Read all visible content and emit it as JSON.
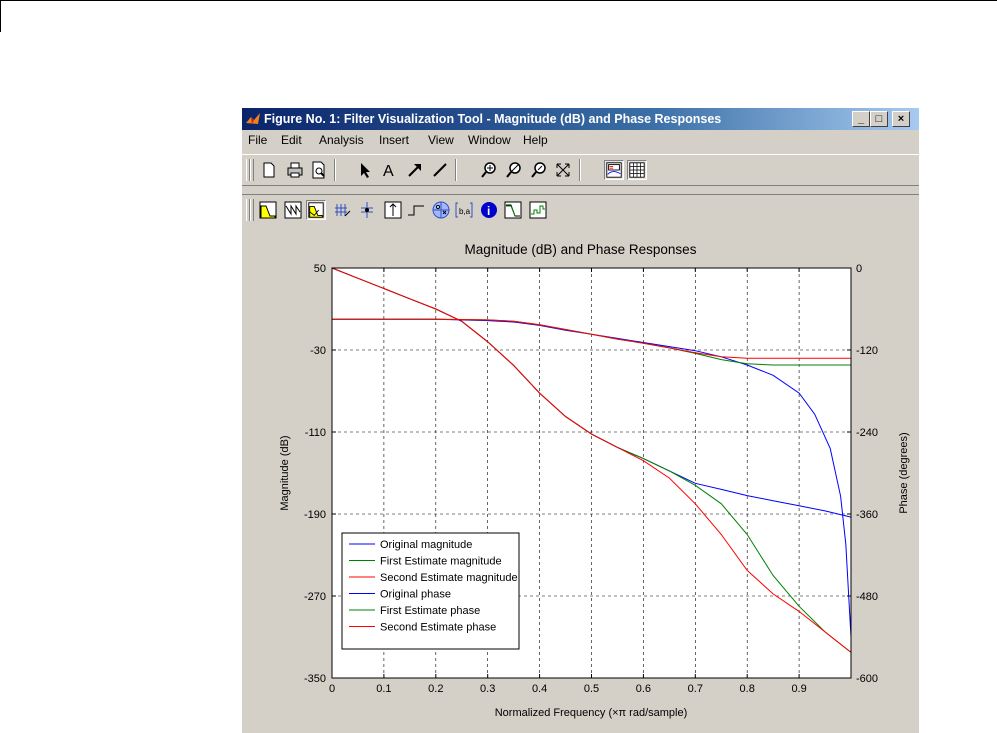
{
  "window": {
    "title": "Figure No. 1: Filter Visualization Tool - Magnitude (dB) and Phase Responses",
    "minimize": "_",
    "maximize": "□",
    "close": "×"
  },
  "menu": [
    "File",
    "Edit",
    "Analysis",
    "Insert",
    "View",
    "Window",
    "Help"
  ],
  "toolbar1": [
    "new-icon",
    "print-icon",
    "print-preview-icon",
    "select-arrow-icon",
    "text-icon",
    "arrow-icon",
    "line-icon",
    "zoom-in-icon",
    "zoom-out-icon",
    "zoom-icon",
    "zoom-reset-icon",
    "legend-icon",
    "grid-icon"
  ],
  "toolbar2": [
    "magnitude-response-icon",
    "phase-response-icon",
    "magnitude-phase-icon",
    "group-delay-icon",
    "phase-delay-icon",
    "impulse-response-icon",
    "step-response-icon",
    "pole-zero-icon",
    "coefficients-icon",
    "info-icon",
    "magnitude-estimate-icon",
    "noise-power-icon"
  ],
  "chart_data": {
    "type": "line",
    "title": "Magnitude (dB) and Phase Responses",
    "xlabel": "Normalized Frequency (×π rad/sample)",
    "ylabel": "Magnitude (dB)",
    "y2label": "Phase (degrees)",
    "xlim": [
      0,
      1
    ],
    "ylim": [
      -350,
      50
    ],
    "y2lim": [
      -600,
      0
    ],
    "xticks": [
      "0",
      "0.1",
      "0.2",
      "0.3",
      "0.4",
      "0.5",
      "0.6",
      "0.7",
      "0.8",
      "0.9"
    ],
    "yticks": [
      "50",
      "-30",
      "-110",
      "-190",
      "-270",
      "-350"
    ],
    "y2ticks": [
      "0",
      "-120",
      "-240",
      "-360",
      "-480",
      "-600"
    ],
    "grid": true,
    "legend_position": "bottom-left",
    "colors": {
      "original": "#0000ff",
      "first": "#008000",
      "second": "#ff0000"
    },
    "series": [
      {
        "name": "Original magnitude",
        "axis": "left",
        "color": "#0000ff",
        "x": [
          0,
          0.05,
          0.1,
          0.15,
          0.2,
          0.25,
          0.3,
          0.35,
          0.4,
          0.45,
          0.5,
          0.55,
          0.6,
          0.65,
          0.7,
          0.75,
          0.8,
          0.85,
          0.9,
          0.95,
          1.0
        ],
        "y": [
          50,
          40,
          30,
          20,
          10,
          -2,
          -22,
          -45,
          -72,
          -95,
          -112,
          -125,
          -136,
          -148,
          -160,
          -166,
          -172,
          -177,
          -182,
          -187,
          -193
        ]
      },
      {
        "name": "First  Estimate magnitude",
        "axis": "left",
        "color": "#008000",
        "x": [
          0,
          0.05,
          0.1,
          0.15,
          0.2,
          0.25,
          0.3,
          0.35,
          0.4,
          0.45,
          0.5,
          0.55,
          0.6,
          0.65,
          0.7,
          0.75,
          0.8,
          0.85,
          0.9,
          0.95,
          1.0
        ],
        "y": [
          50,
          40,
          30,
          20,
          10,
          -2,
          -22,
          -45,
          -72,
          -95,
          -112,
          -125,
          -136,
          -148,
          -162,
          -180,
          -210,
          -250,
          -280,
          -305,
          -325
        ]
      },
      {
        "name": "Second Estimate magnitude",
        "axis": "left",
        "color": "#ff0000",
        "x": [
          0,
          0.05,
          0.1,
          0.15,
          0.2,
          0.25,
          0.3,
          0.35,
          0.4,
          0.45,
          0.5,
          0.55,
          0.6,
          0.65,
          0.7,
          0.75,
          0.8,
          0.85,
          0.9,
          0.95,
          1.0
        ],
        "y": [
          50,
          40,
          30,
          20,
          10,
          -2,
          -22,
          -45,
          -72,
          -95,
          -112,
          -125,
          -138,
          -155,
          -180,
          -210,
          -245,
          -268,
          -285,
          -305,
          -325
        ]
      },
      {
        "name": "Original phase",
        "axis": "right",
        "color": "#0000ff",
        "x": [
          0,
          0.1,
          0.2,
          0.3,
          0.35,
          0.4,
          0.45,
          0.5,
          0.55,
          0.6,
          0.65,
          0.7,
          0.75,
          0.8,
          0.85,
          0.9,
          0.93,
          0.96,
          0.98,
          0.99,
          1.0,
          1.0
        ],
        "y": [
          -75,
          -75,
          -75,
          -77,
          -79,
          -84,
          -91,
          -97,
          -103,
          -109,
          -115,
          -121,
          -130,
          -142,
          -157,
          -183,
          -214,
          -264,
          -334,
          -404,
          -540,
          -360
        ]
      },
      {
        "name": "First Estimate phase",
        "axis": "right",
        "color": "#008000",
        "x": [
          0,
          0.1,
          0.2,
          0.3,
          0.35,
          0.4,
          0.45,
          0.5,
          0.55,
          0.6,
          0.65,
          0.7,
          0.75,
          0.8,
          0.85,
          0.9,
          1.0
        ],
        "y": [
          -75,
          -75,
          -75,
          -76,
          -78,
          -83,
          -90,
          -97,
          -104,
          -110,
          -117,
          -125,
          -134,
          -140,
          -142,
          -142,
          -142
        ]
      },
      {
        "name": "Second Estimate phase",
        "axis": "right",
        "color": "#ff0000",
        "x": [
          0,
          0.1,
          0.2,
          0.3,
          0.35,
          0.4,
          0.45,
          0.5,
          0.55,
          0.6,
          0.65,
          0.7,
          0.75,
          0.8,
          0.85,
          0.9,
          1.0
        ],
        "y": [
          -75,
          -75,
          -75,
          -76,
          -78,
          -83,
          -90,
          -97,
          -104,
          -110,
          -117,
          -124,
          -130,
          -132,
          -132,
          -132,
          -132
        ]
      }
    ]
  }
}
